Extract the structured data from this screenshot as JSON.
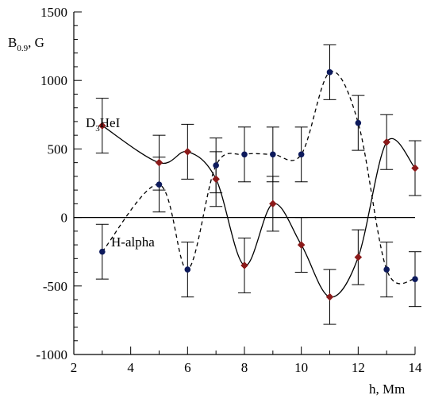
{
  "chart_data": {
    "type": "line",
    "ylabel": {
      "main": "B",
      "sub": "0.9",
      "rest": ", G"
    },
    "xlabel": "h, Mm",
    "xlim": [
      2,
      14
    ],
    "ylim": [
      -1000,
      1500
    ],
    "x_ticks": [
      2,
      4,
      6,
      8,
      10,
      12,
      14
    ],
    "y_ticks": [
      -1000,
      -500,
      0,
      500,
      1000,
      1500
    ],
    "x_tick_labels": [
      "2",
      "4",
      "6",
      "8",
      "10",
      "12",
      "14"
    ],
    "y_tick_labels": [
      "-1000",
      "-500",
      "0",
      "500",
      "1000",
      "1500"
    ],
    "zero_line": true,
    "error_half_width": 200,
    "series": [
      {
        "key": "d3hei",
        "label": {
          "main": "D",
          "sub": "3",
          "rest": "HeI"
        },
        "line_style": "solid",
        "marker": "diamond",
        "marker_color": "#8b1a1a",
        "x": [
          3,
          5,
          6,
          7,
          8,
          9,
          10,
          11,
          12,
          13,
          14
        ],
        "y": [
          670,
          400,
          480,
          280,
          -350,
          100,
          -200,
          -580,
          -290,
          550,
          360
        ]
      },
      {
        "key": "halpha",
        "label": {
          "main": "H-alpha"
        },
        "line_style": "dashed",
        "marker": "circle",
        "marker_color": "#0d1a5c",
        "x": [
          3,
          5,
          6,
          7,
          8,
          9,
          10,
          11,
          12,
          13,
          14
        ],
        "y": [
          -250,
          240,
          -380,
          380,
          460,
          460,
          460,
          1060,
          690,
          -380,
          -450
        ]
      }
    ]
  }
}
